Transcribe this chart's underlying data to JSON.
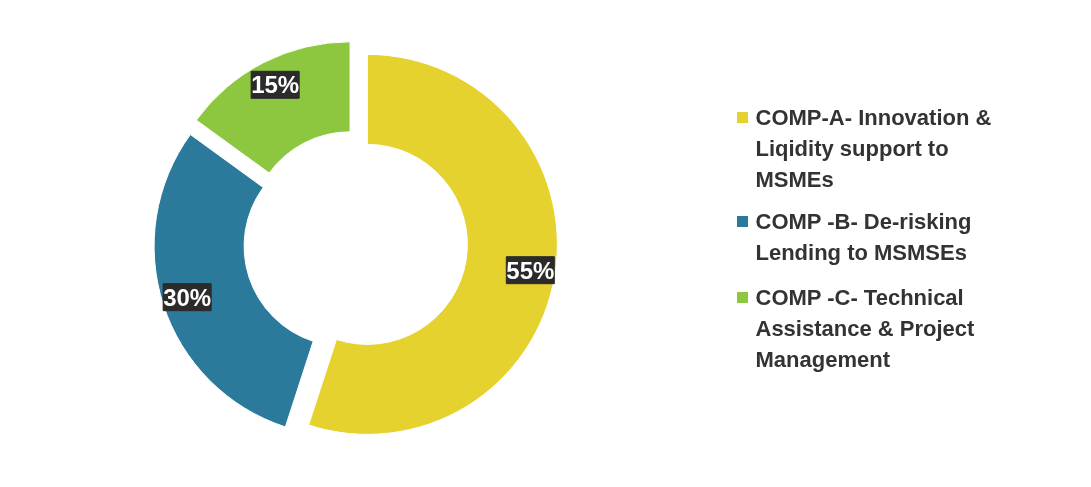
{
  "chart_data": {
    "type": "donut",
    "categories": [
      "COMP-A- Innovation & Liqidity support to MSMEs",
      "COMP -B- De-risking Lending to MSMSEs",
      "COMP -C- Technical Assistance & Project Management"
    ],
    "values": [
      55,
      30,
      15
    ],
    "colors": [
      "#e6d22e",
      "#2b7a9c",
      "#8dc63f"
    ],
    "value_labels": [
      "55%",
      "30%",
      "15%"
    ],
    "legend": "right"
  }
}
